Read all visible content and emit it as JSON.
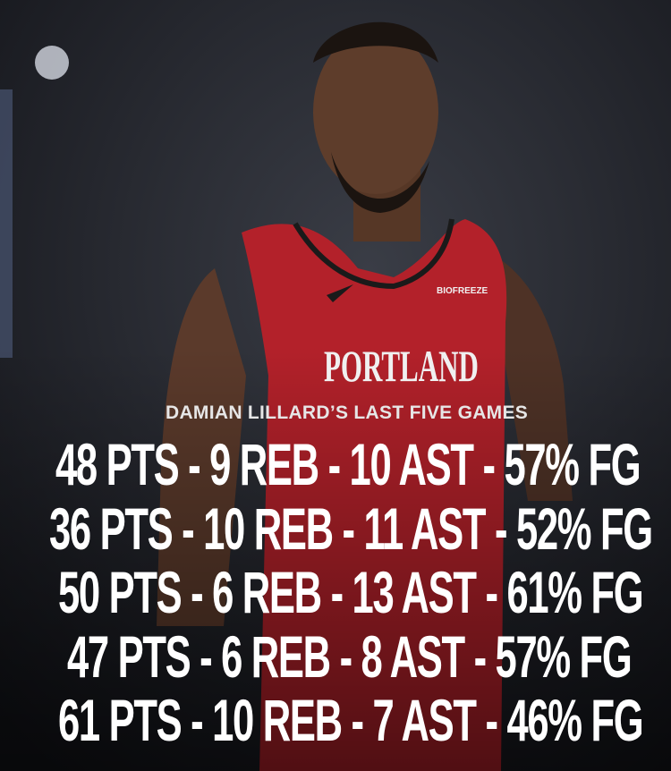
{
  "heading": "DAMIAN LILLARD’S LAST FIVE GAMES",
  "stat_lines": [
    "48 PTS - 9 REB - 10 AST - 57% FG",
    "36 PTS - 10 REB - 11 AST - 52% FG",
    "50 PTS - 6 REB - 13 AST - 61% FG",
    "47 PTS - 6 REB - 8 AST - 57% FG",
    "61 PTS - 10 REB - 7 AST - 46% FG"
  ],
  "jersey": {
    "wordmark": "PORTLAND",
    "sponsor": "BIOFREEZE"
  }
}
